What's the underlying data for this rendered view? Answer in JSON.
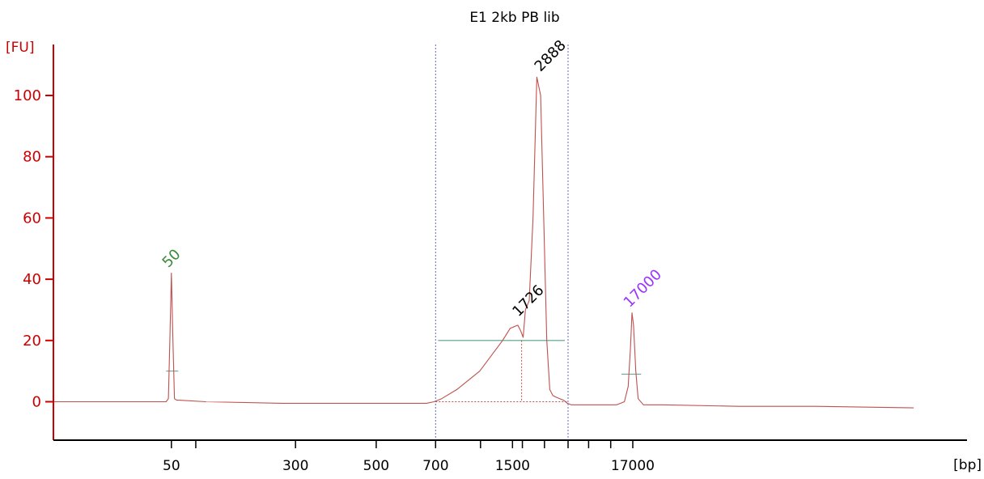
{
  "chart_data": {
    "type": "line",
    "title": "E1 2kb PB lib",
    "ylabel": "[FU]",
    "xlabel": "[bp]",
    "ylim": [
      -12,
      118
    ],
    "xlim": [
      0,
      1200
    ],
    "yticks": [
      0,
      20,
      40,
      60,
      80,
      100
    ],
    "xtick_labels": [
      {
        "label": "50",
        "x": 155
      },
      {
        "label": "300",
        "x": 318
      },
      {
        "label": "500",
        "x": 424
      },
      {
        "label": "700",
        "x": 502
      },
      {
        "label": "1500",
        "x": 603
      },
      {
        "label": "17000",
        "x": 761
      }
    ],
    "xtick_marks": [
      155,
      187,
      318,
      424,
      502,
      561,
      603,
      616,
      645,
      676,
      703,
      732,
      761
    ],
    "series": [
      {
        "color": "#c0504d",
        "x": [
          0,
          100,
          148,
          151,
          153,
          155,
          157,
          159,
          162,
          165,
          200,
          300,
          400,
          490,
          500,
          510,
          530,
          560,
          590,
          600,
          610,
          614,
          617,
          620,
          625,
          630,
          635,
          640,
          644,
          648,
          652,
          656,
          660,
          665,
          670,
          675,
          680,
          700,
          720,
          740,
          750,
          755,
          758,
          760,
          762,
          765,
          768,
          775,
          800,
          900,
          1000,
          1130
        ],
        "y": [
          0,
          0,
          0,
          1,
          20,
          42,
          20,
          1,
          0.5,
          0.5,
          0,
          -0.5,
          -0.5,
          -0.5,
          0,
          1,
          4,
          10,
          20,
          24,
          25,
          23,
          21,
          30,
          33,
          60,
          106,
          100,
          60,
          20,
          4,
          2,
          1.5,
          1,
          0.5,
          -0.5,
          -1,
          -1,
          -1,
          -1,
          0,
          5,
          18,
          29,
          25,
          10,
          1,
          -1,
          -1,
          -1.5,
          -1.5,
          -2
        ]
      }
    ],
    "annotations": [
      {
        "text": "50",
        "x": 155,
        "y": 42,
        "color": "#3a8a3a"
      },
      {
        "text": "1726",
        "x": 615,
        "y": 26,
        "color": "#000000"
      },
      {
        "text": "2888",
        "x": 644,
        "y": 106,
        "color": "#000000"
      },
      {
        "text": "17000",
        "x": 761,
        "y": 29,
        "color": "#9933ff"
      }
    ],
    "region": {
      "x_start": 502,
      "x_end": 676
    },
    "region_level": 20,
    "peak_markers": [
      {
        "x_start": 148,
        "x_end": 164,
        "y": 10
      },
      {
        "x_start": 746,
        "x_end": 772,
        "y": 9
      }
    ],
    "colors": {
      "axis": "#cc0000",
      "trace": "#c0504d",
      "region_line": "#5b9b8b",
      "region_bound": "#6666cc",
      "black": "#000000"
    }
  }
}
